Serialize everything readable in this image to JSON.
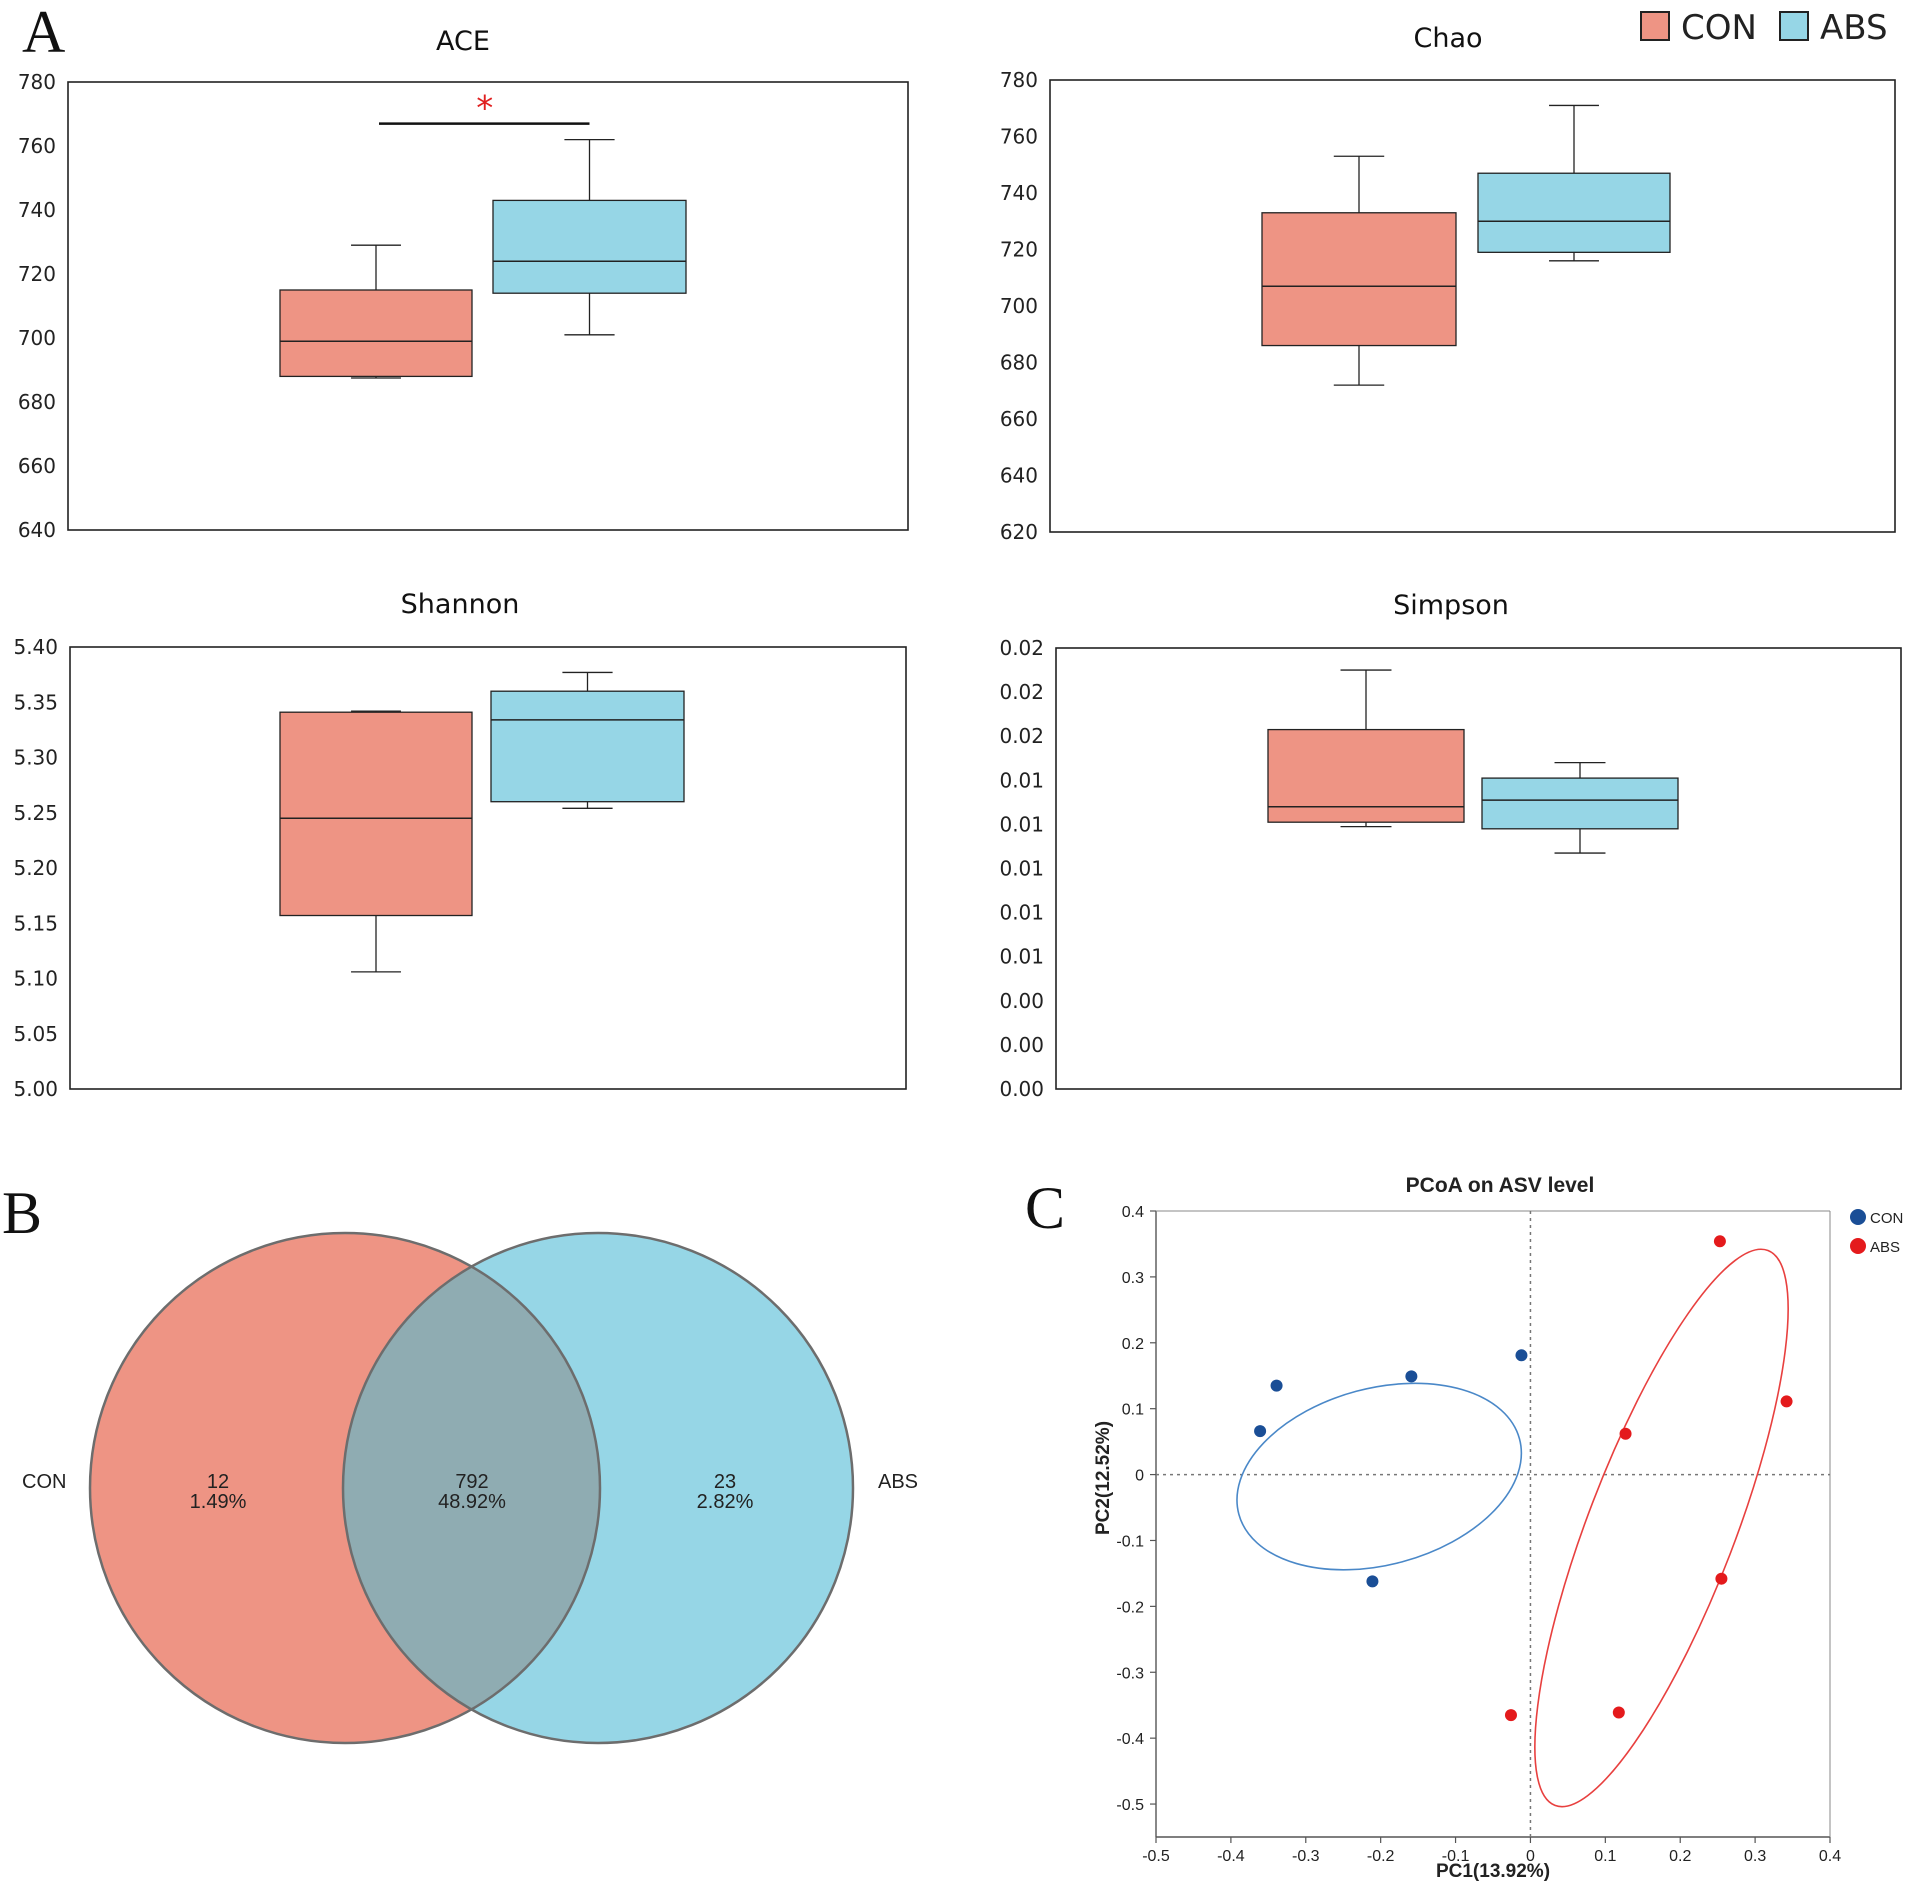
{
  "figure": {
    "panel_labels": {
      "a": "A",
      "b": "B",
      "c": "C"
    },
    "legend": [
      {
        "name": "CON",
        "color": "#EE9484"
      },
      {
        "name": "ABS",
        "color": "#96D6E6"
      }
    ]
  },
  "chart_data": [
    {
      "id": "ace",
      "type": "box",
      "title": "ACE",
      "ylim": [
        640,
        780
      ],
      "yticks": [
        "640",
        "660",
        "680",
        "700",
        "720",
        "740",
        "760",
        "780"
      ],
      "series": [
        {
          "name": "CON",
          "color": "#EE9484",
          "whisker_low": 687.5,
          "q1": 688,
          "median": 699,
          "q3": 715,
          "whisker_high": 729
        },
        {
          "name": "ABS",
          "color": "#96D6E6",
          "whisker_low": 701,
          "q1": 714,
          "median": 724,
          "q3": 743,
          "whisker_high": 762
        }
      ],
      "significance": {
        "label": "*",
        "color": "#E02020",
        "level": 767
      }
    },
    {
      "id": "chao",
      "type": "box",
      "title": "Chao",
      "ylim": [
        620,
        780
      ],
      "yticks": [
        "620",
        "640",
        "660",
        "680",
        "700",
        "720",
        "740",
        "760",
        "780"
      ],
      "series": [
        {
          "name": "CON",
          "color": "#EE9484",
          "whisker_low": 672,
          "q1": 686,
          "median": 707,
          "q3": 733,
          "whisker_high": 753
        },
        {
          "name": "ABS",
          "color": "#96D6E6",
          "whisker_low": 716,
          "q1": 719,
          "median": 730,
          "q3": 747,
          "whisker_high": 771
        }
      ]
    },
    {
      "id": "shannon",
      "type": "box",
      "title": "Shannon",
      "ylim": [
        5.0,
        5.4
      ],
      "yticks": [
        "5.00",
        "5.05",
        "5.10",
        "5.15",
        "5.20",
        "5.25",
        "5.30",
        "5.35",
        "5.40"
      ],
      "series": [
        {
          "name": "CON",
          "color": "#EE9484",
          "whisker_low": 5.106,
          "q1": 5.157,
          "median": 5.245,
          "q3": 5.341,
          "whisker_high": 5.342
        },
        {
          "name": "ABS",
          "color": "#96D6E6",
          "whisker_low": 5.254,
          "q1": 5.26,
          "median": 5.334,
          "q3": 5.36,
          "whisker_high": 5.377
        }
      ]
    },
    {
      "id": "simpson",
      "type": "box",
      "title": "Simpson",
      "ylim": [
        0.0,
        0.02
      ],
      "yticks": [
        "0.00",
        "0.00",
        "0.00",
        "0.01",
        "0.01",
        "0.01",
        "0.01",
        "0.01",
        "0.02",
        "0.02",
        "0.02"
      ],
      "series": [
        {
          "name": "CON",
          "color": "#EE9484",
          "whisker_low": 0.0119,
          "q1": 0.0121,
          "median": 0.0128,
          "q3": 0.0163,
          "whisker_high": 0.019
        },
        {
          "name": "ABS",
          "color": "#96D6E6",
          "whisker_low": 0.0107,
          "q1": 0.0118,
          "median": 0.0131,
          "q3": 0.0141,
          "whisker_high": 0.0148
        }
      ]
    },
    {
      "id": "venn",
      "type": "venn",
      "sets": [
        {
          "name": "CON",
          "color": "#EE9484"
        },
        {
          "name": "ABS",
          "color": "#96D6E6"
        }
      ],
      "regions": [
        {
          "set": "CON only",
          "count": "12",
          "percent": "1.49%"
        },
        {
          "set": "shared",
          "count": "792",
          "percent": "48.92%"
        },
        {
          "set": "ABS only",
          "count": "23",
          "percent": "2.82%"
        }
      ],
      "overlap_color": "#8FACB2"
    },
    {
      "id": "pcoa",
      "type": "scatter",
      "title": "PCoA on ASV level",
      "xlabel": "PC1(13.92%)",
      "ylabel": "PC2(12.52%)",
      "xlim": [
        -0.5,
        0.4
      ],
      "ylim": [
        -0.55,
        0.4
      ],
      "xticks": [
        "-0.5",
        "-0.4",
        "-0.3",
        "-0.2",
        "-0.1",
        "0",
        "0.1",
        "0.2",
        "0.3",
        "0.4"
      ],
      "yticks": [
        "-0.5",
        "-0.4",
        "-0.3",
        "-0.2",
        "-0.1",
        "0",
        "0.1",
        "0.2",
        "0.3",
        "0.4"
      ],
      "series": [
        {
          "name": "CON",
          "color": "#1A4E96",
          "ellipse_color": "#4A88C8",
          "points": [
            [
              -0.361,
              0.066
            ],
            [
              -0.339,
              0.135
            ],
            [
              -0.159,
              0.149
            ],
            [
              -0.012,
              0.181
            ],
            [
              -0.211,
              -0.162
            ]
          ],
          "ellipse": {
            "cx": -0.202,
            "cy": -0.003,
            "rx": 0.194,
            "ry": 0.134,
            "angle": -15
          }
        },
        {
          "name": "ABS",
          "color": "#E41A1C",
          "ellipse_color": "#E8403F",
          "points": [
            [
              0.253,
              0.354
            ],
            [
              0.342,
              0.111
            ],
            [
              0.127,
              0.062
            ],
            [
              0.255,
              -0.158
            ],
            [
              0.118,
              -0.361
            ],
            [
              -0.026,
              -0.365
            ]
          ],
          "ellipse": {
            "cx": 0.175,
            "cy": -0.081,
            "rx": 0.098,
            "ry": 0.451,
            "angle": 21
          }
        }
      ]
    }
  ]
}
